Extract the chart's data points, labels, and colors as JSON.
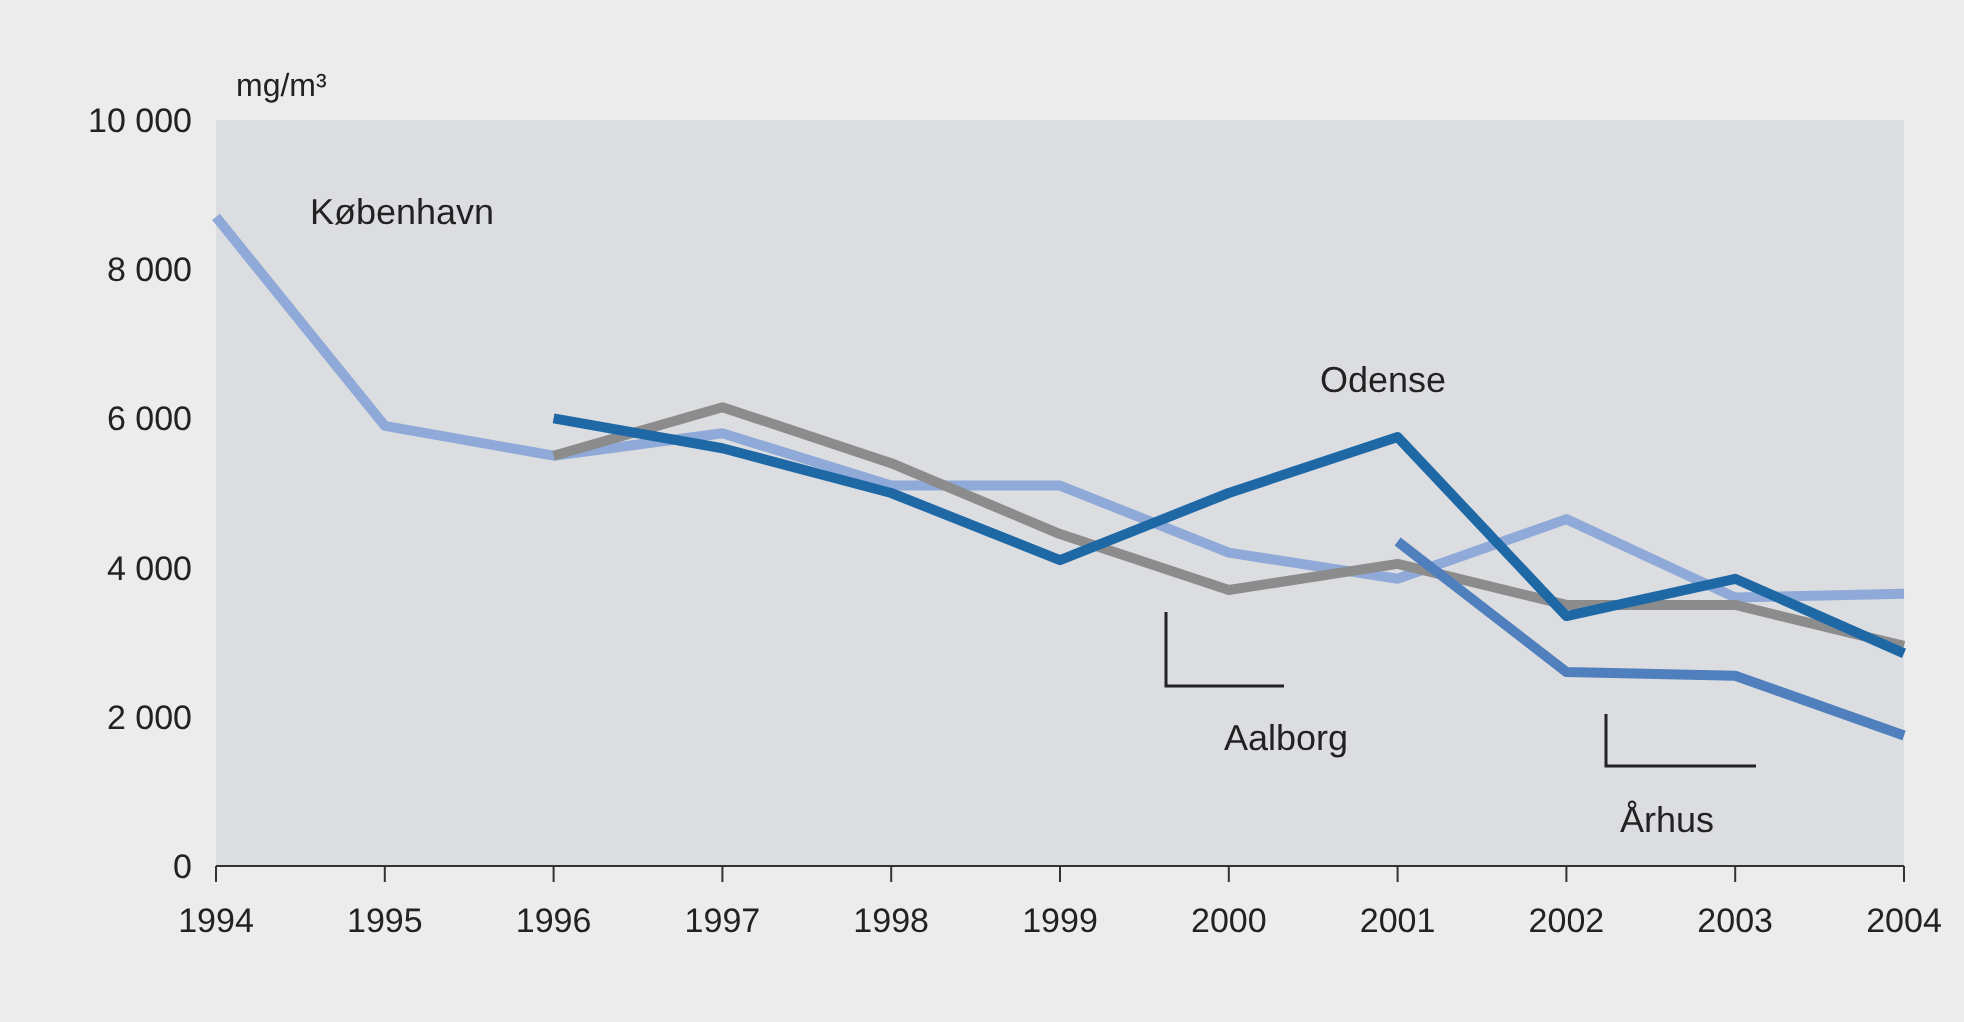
{
  "chart_data": {
    "type": "line",
    "ylabel": "mg/m³",
    "x": [
      1994,
      1995,
      1996,
      1997,
      1998,
      1999,
      2000,
      2001,
      2002,
      2003,
      2004
    ],
    "xlim": [
      1994,
      2004
    ],
    "xticks": [
      1994,
      1995,
      1996,
      1997,
      1998,
      1999,
      2000,
      2001,
      2002,
      2003,
      2004
    ],
    "ylim": [
      0,
      10000
    ],
    "yticks": [
      0,
      {
        "value": 2000,
        "label": "2 000"
      },
      {
        "value": 4000,
        "label": "4 000"
      },
      {
        "value": 6000,
        "label": "6 000"
      },
      {
        "value": 8000,
        "label": "8 000"
      },
      {
        "value": 10000,
        "label": "10 000"
      }
    ],
    "grid": false,
    "line_style": "solid",
    "series": [
      {
        "name": "København",
        "color": "#8faad8",
        "values": [
          8700,
          5900,
          5500,
          5800,
          5100,
          5100,
          4200,
          3850,
          4650,
          3600,
          3650
        ]
      },
      {
        "name": "Aalborg",
        "color": "#8c8c8c",
        "values": [
          null,
          null,
          5500,
          6150,
          5400,
          4450,
          3700,
          4050,
          3500,
          3500,
          2950
        ]
      },
      {
        "name": "Odense",
        "color": "#1f68a6",
        "values": [
          null,
          null,
          6000,
          5600,
          5000,
          4100,
          5000,
          5750,
          3350,
          3850,
          2850
        ]
      },
      {
        "name": "Århus",
        "color": "#4f7fbd",
        "values": [
          null,
          null,
          null,
          null,
          null,
          null,
          null,
          4350,
          2600,
          2550,
          1750
        ]
      }
    ]
  }
}
